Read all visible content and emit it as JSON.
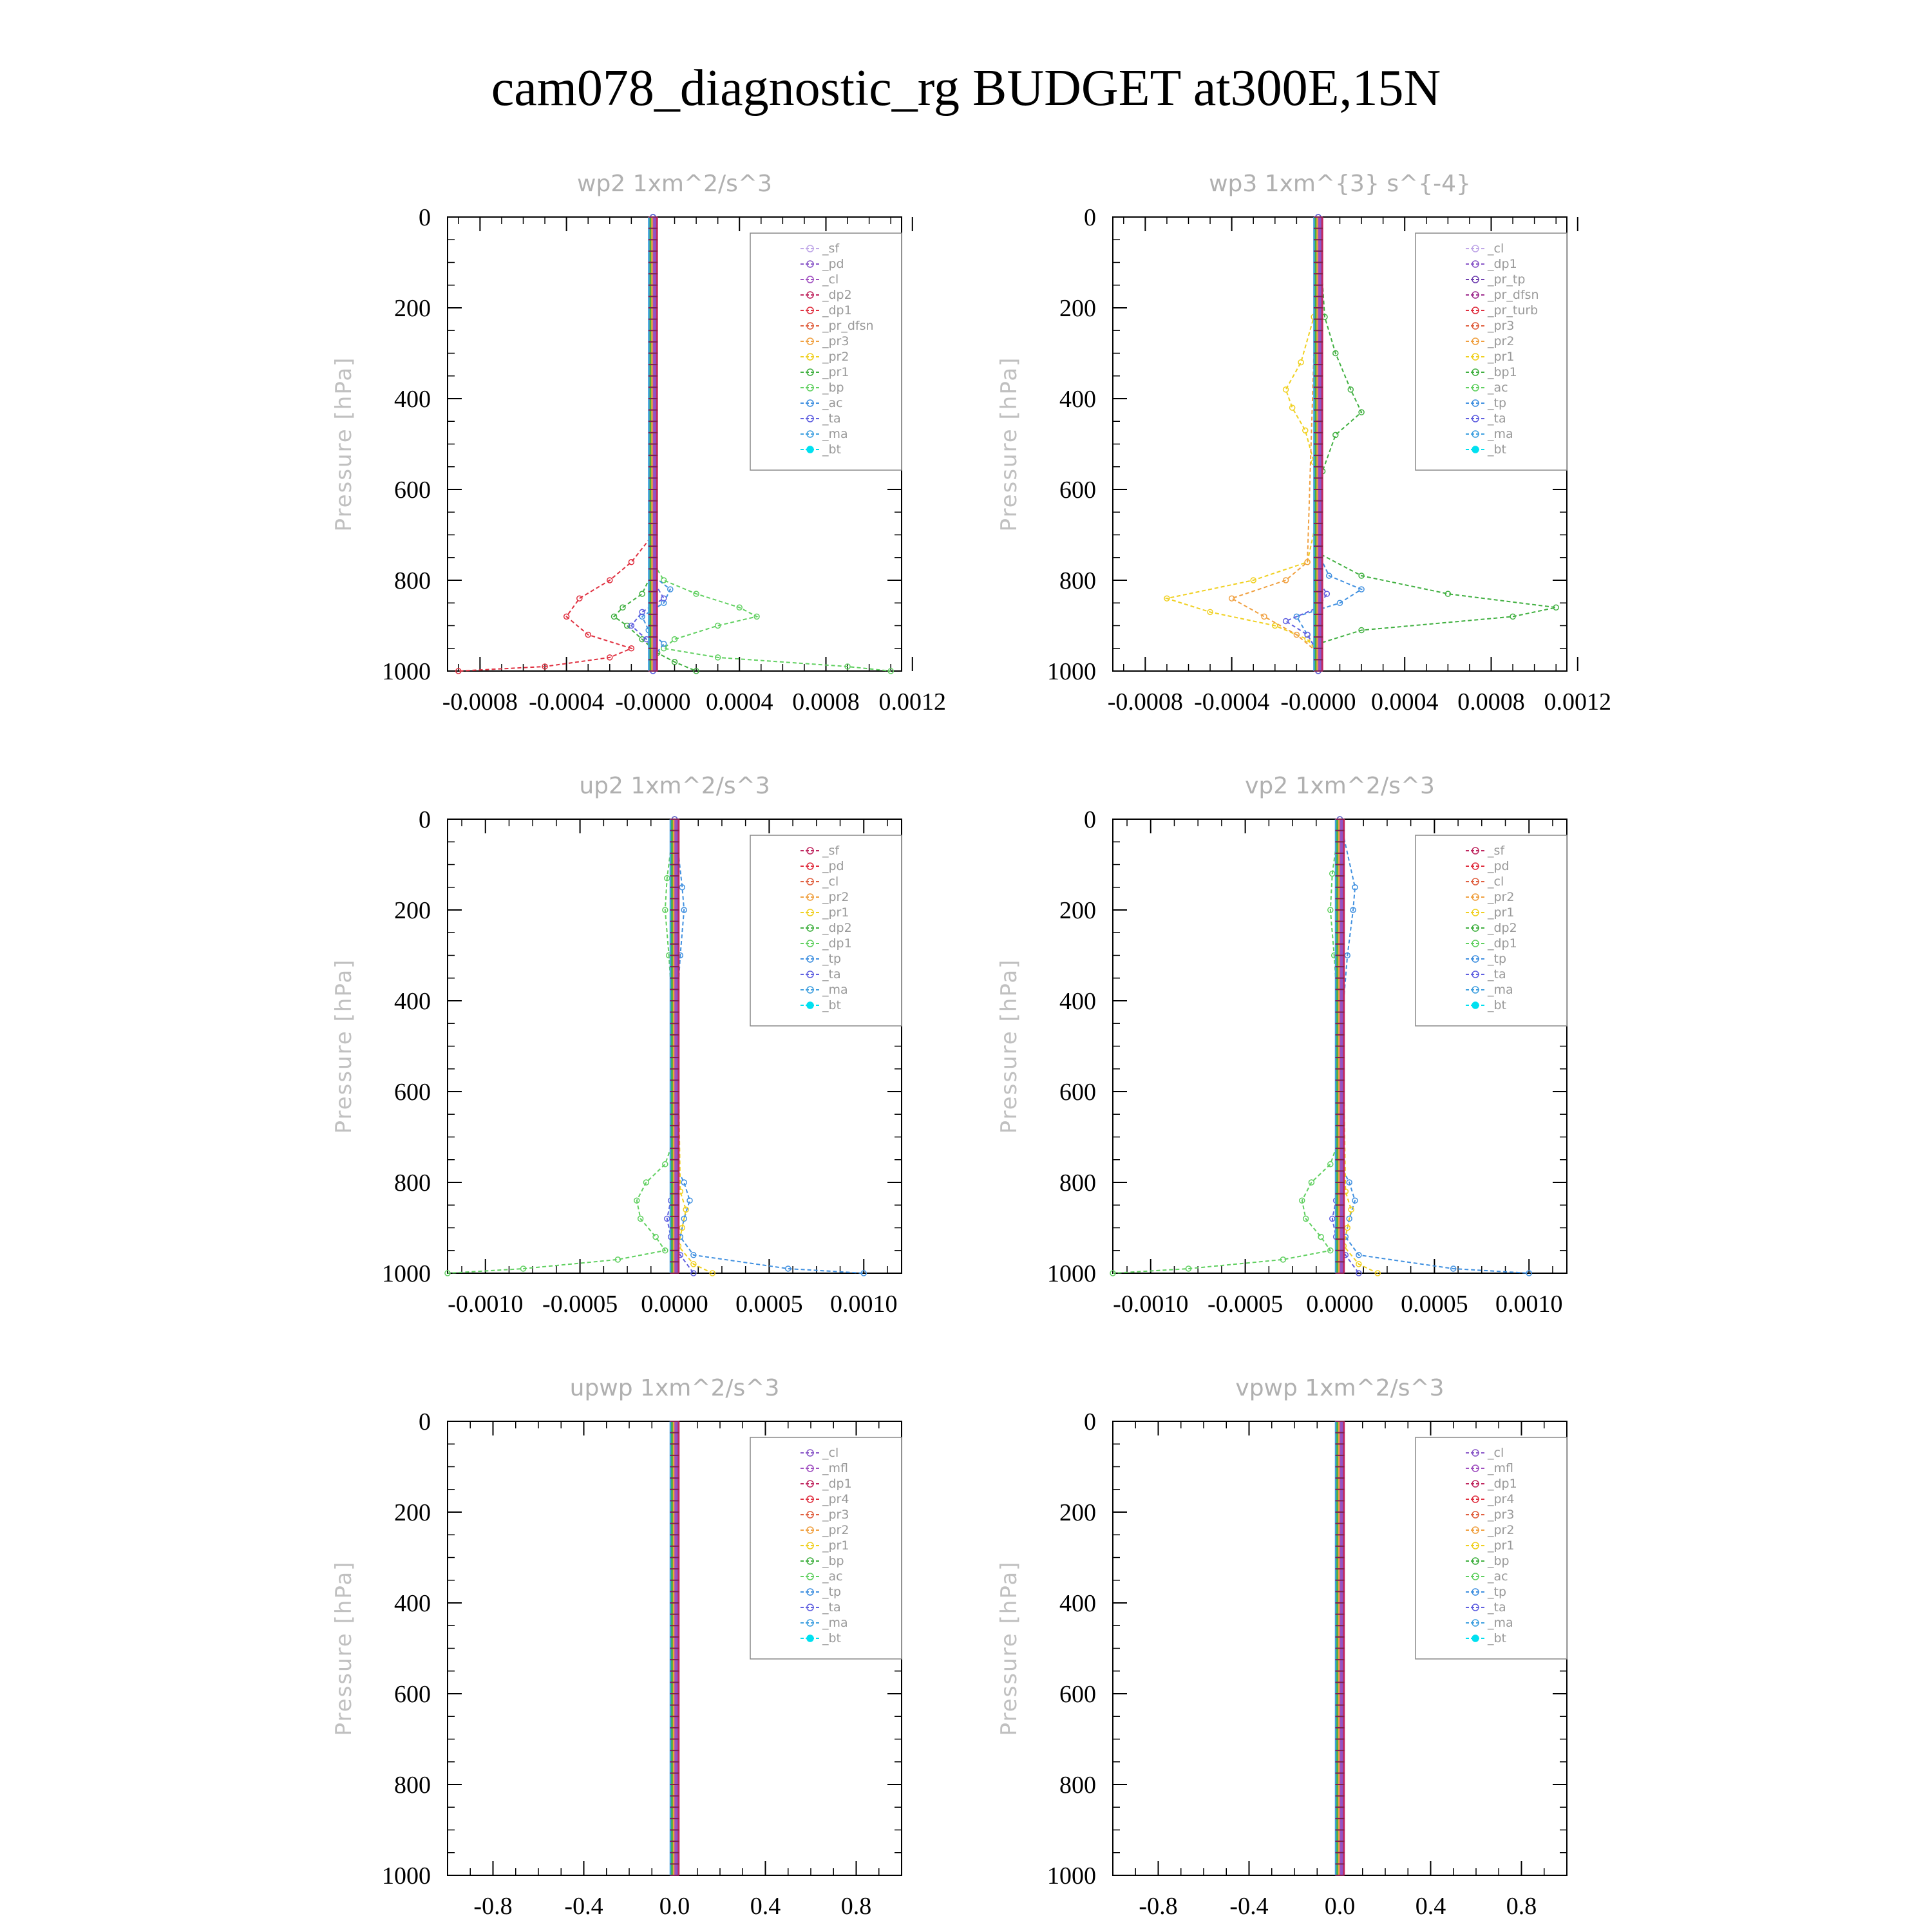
{
  "title": "cam078_diagnostic_rg  BUDGET at300E,15N",
  "chart_data": [
    {
      "type": "line",
      "title": "wp2   1xm^2/s^3",
      "ylabel": "Pressure [hPa]",
      "yticks": [
        0,
        200,
        400,
        600,
        800,
        1000
      ],
      "ylim": [
        0,
        1000
      ],
      "xlim": [
        -0.00095,
        0.00115
      ],
      "xticks": [
        -0.0008,
        -0.0004,
        0.0,
        0.0004,
        0.0008,
        0.0012
      ],
      "xtick_labels": [
        "-0.0008",
        "-0.0004",
        "-0.0000",
        "0.0004",
        "0.0008",
        "0.0012"
      ],
      "legend": [
        "_sf",
        "_pd",
        "_cl",
        "_dp2",
        "_dp1",
        "_pr_dfsn",
        "_pr3",
        "_pr2",
        "_pr1",
        "_bp",
        "_ac",
        "_ta",
        "_ma",
        "_bt"
      ],
      "legend_colors": [
        "#c0a8e8",
        "#8a58c8",
        "#a050c0",
        "#c02860",
        "#e03040",
        "#e06040",
        "#f0a040",
        "#f0d020",
        "#40b040",
        "#60d060",
        "#4090e0",
        "#6060e0",
        "#40a0e0",
        "#00e0f0"
      ],
      "legend_position": "top-right",
      "series": [
        {
          "name": "_dp1",
          "y": [
            0,
            700,
            760,
            800,
            840,
            880,
            920,
            950,
            970,
            990,
            1000
          ],
          "x": [
            0,
            0,
            -0.0001,
            -0.0002,
            -0.00034,
            -0.0004,
            -0.0003,
            -0.0001,
            -0.0002,
            -0.0005,
            -0.0009
          ]
        },
        {
          "name": "_pr1",
          "y": [
            0,
            780,
            830,
            860,
            880,
            900,
            930,
            960,
            980,
            1000
          ],
          "x": [
            0,
            0,
            -5e-05,
            -0.00014,
            -0.00018,
            -0.00012,
            -5e-05,
            2e-05,
            0.0001,
            0.0002
          ]
        },
        {
          "name": "_bp",
          "y": [
            0,
            760,
            800,
            830,
            860,
            880,
            900,
            930,
            950,
            970,
            990,
            1000
          ],
          "x": [
            0,
            0,
            5e-05,
            0.0002,
            0.0004,
            0.00048,
            0.0003,
            0.0001,
            5e-05,
            0.0003,
            0.0009,
            0.0011
          ]
        },
        {
          "name": "_ac",
          "y": [
            0,
            790,
            820,
            850,
            880,
            910,
            940,
            970,
            1000
          ],
          "x": [
            0,
            0,
            8e-05,
            5e-05,
            -5e-05,
            -2e-05,
            5e-05,
            0.0,
            0.0
          ]
        },
        {
          "name": "_ta",
          "y": [
            0,
            800,
            840,
            870,
            900,
            930,
            960,
            1000
          ],
          "x": [
            0,
            0,
            5e-05,
            -5e-05,
            -0.0001,
            -3e-05,
            0.0,
            0.0
          ]
        }
      ]
    },
    {
      "type": "line",
      "title": "wp3   1xm^{3} s^{-4}",
      "ylabel": "Pressure [hPa]",
      "yticks": [
        0,
        200,
        400,
        600,
        800,
        1000
      ],
      "ylim": [
        0,
        1000
      ],
      "xlim": [
        -0.00095,
        0.00115
      ],
      "xticks": [
        -0.0008,
        -0.0004,
        0.0,
        0.0004,
        0.0008,
        0.0012
      ],
      "xtick_labels": [
        "-0.0008",
        "-0.0004",
        "-0.0000",
        "0.0004",
        "0.0008",
        "0.0012"
      ],
      "legend": [
        "_cl",
        "_dp1",
        "_pr_tp",
        "_pr_dfsn",
        "_pr_turb",
        "_pr3",
        "_pr2",
        "_pr1",
        "_bp1",
        "_ac",
        "_tp",
        "_ta",
        "_ma",
        "_bt"
      ],
      "legend_colors": [
        "#c0a8e8",
        "#8a58c8",
        "#7040b0",
        "#a03090",
        "#e03040",
        "#e06040",
        "#f0a040",
        "#f0d020",
        "#40b040",
        "#60d060",
        "#4090e0",
        "#6060e0",
        "#40a0e0",
        "#00e0f0"
      ],
      "legend_position": "top-right",
      "series": [
        {
          "name": "_bp1",
          "y": [
            0,
            220,
            300,
            380,
            430,
            480,
            560,
            650,
            740,
            790,
            830,
            860,
            880,
            910,
            940,
            1000
          ],
          "x": [
            0,
            3e-05,
            8e-05,
            0.00015,
            0.0002,
            8e-05,
            2e-05,
            0.0,
            0.0,
            0.0002,
            0.0006,
            0.0011,
            0.0009,
            0.0002,
            0.0,
            0.0
          ]
        },
        {
          "name": "_pr1",
          "y": [
            0,
            220,
            320,
            380,
            420,
            470,
            540,
            650,
            760,
            800,
            840,
            870,
            900,
            930,
            960,
            1000
          ],
          "x": [
            0,
            -2e-05,
            -8e-05,
            -0.00015,
            -0.00012,
            -6e-05,
            -2e-05,
            0.0,
            -5e-05,
            -0.0003,
            -0.0007,
            -0.0005,
            -0.0002,
            -5e-05,
            0.0,
            0.0
          ]
        },
        {
          "name": "_pr2",
          "y": [
            0,
            760,
            800,
            840,
            880,
            920,
            960,
            1000
          ],
          "x": [
            0,
            -5e-05,
            -0.00015,
            -0.0004,
            -0.00025,
            -0.0001,
            0.0,
            0.0
          ]
        },
        {
          "name": "_tp",
          "y": [
            0,
            740,
            790,
            820,
            850,
            880,
            920,
            960,
            1000
          ],
          "x": [
            0,
            0.0,
            5e-05,
            0.0002,
            0.0001,
            -0.0001,
            -5e-05,
            0.0,
            0.0
          ]
        },
        {
          "name": "_ta",
          "y": [
            0,
            800,
            830,
            860,
            890,
            920,
            960,
            1000
          ],
          "x": [
            0,
            0.0,
            4e-05,
            0.0,
            -0.00015,
            -5e-05,
            0.0,
            0.0
          ]
        }
      ]
    },
    {
      "type": "line",
      "title": "up2   1xm^2/s^3",
      "ylabel": "Pressure [hPa]",
      "yticks": [
        0,
        200,
        400,
        600,
        800,
        1000
      ],
      "ylim": [
        0,
        1000
      ],
      "xlim": [
        -0.0012,
        0.0012
      ],
      "xticks": [
        -0.001,
        -0.0005,
        0.0,
        0.0005,
        0.001
      ],
      "xtick_labels": [
        "-0.0010",
        "-0.0005",
        "0.0000",
        "0.0005",
        "0.0010"
      ],
      "legend": [
        "_sf",
        "_pd",
        "_cl",
        "_pr2",
        "_pr1",
        "_dp2",
        "_dp1",
        "_tp",
        "_ta",
        "_ma",
        "_bt"
      ],
      "legend_colors": [
        "#c02860",
        "#e03040",
        "#e06040",
        "#f0a040",
        "#f0d020",
        "#40b040",
        "#60d060",
        "#4090e0",
        "#6060e0",
        "#40a0e0",
        "#00e0f0"
      ],
      "legend_position": "top-right",
      "series": [
        {
          "name": "_dp1",
          "y": [
            0,
            130,
            200,
            300,
            500,
            700,
            760,
            800,
            840,
            880,
            920,
            950,
            970,
            990,
            1000
          ],
          "x": [
            0,
            -4e-05,
            -5e-05,
            -3e-05,
            0.0,
            0.0,
            -5e-05,
            -0.00015,
            -0.0002,
            -0.00018,
            -0.0001,
            -5e-05,
            -0.0003,
            -0.0008,
            -0.0012
          ]
        },
        {
          "name": "_tp",
          "y": [
            0,
            150,
            200,
            300,
            500,
            760,
            800,
            840,
            880,
            920,
            960,
            990,
            1000
          ],
          "x": [
            0,
            4e-05,
            5e-05,
            3e-05,
            0.0,
            0.0,
            5e-05,
            8e-05,
            5e-05,
            3e-05,
            0.0001,
            0.0006,
            0.001
          ]
        },
        {
          "name": "_pr1",
          "y": [
            0,
            820,
            860,
            900,
            940,
            980,
            1000
          ],
          "x": [
            0,
            3e-05,
            6e-05,
            4e-05,
            2e-05,
            0.0001,
            0.0002
          ]
        },
        {
          "name": "_ta",
          "y": [
            0,
            800,
            840,
            880,
            920,
            960,
            1000
          ],
          "x": [
            0,
            0.0,
            -2e-05,
            -4e-05,
            -2e-05,
            3e-05,
            0.0001
          ]
        }
      ]
    },
    {
      "type": "line",
      "title": "vp2   1xm^2/s^3",
      "ylabel": "Pressure [hPa]",
      "yticks": [
        0,
        200,
        400,
        600,
        800,
        1000
      ],
      "ylim": [
        0,
        1000
      ],
      "xlim": [
        -0.0012,
        0.0012
      ],
      "xticks": [
        -0.001,
        -0.0005,
        0.0,
        0.0005,
        0.001
      ],
      "xtick_labels": [
        "-0.0010",
        "-0.0005",
        "0.0000",
        "0.0005",
        "0.0010"
      ],
      "legend": [
        "_sf",
        "_pd",
        "_cl",
        "_pr2",
        "_pr1",
        "_dp2",
        "_dp1",
        "_tp",
        "_ta",
        "_ma",
        "_bt"
      ],
      "legend_colors": [
        "#c02860",
        "#e03040",
        "#e06040",
        "#f0a040",
        "#f0d020",
        "#40b040",
        "#60d060",
        "#4090e0",
        "#6060e0",
        "#40a0e0",
        "#00e0f0"
      ],
      "legend_position": "top-right",
      "series": [
        {
          "name": "_dp1",
          "y": [
            0,
            120,
            200,
            300,
            500,
            700,
            760,
            800,
            840,
            880,
            920,
            950,
            970,
            990,
            1000
          ],
          "x": [
            0,
            -4e-05,
            -5e-05,
            -3e-05,
            0.0,
            0.0,
            -5e-05,
            -0.00015,
            -0.0002,
            -0.00018,
            -0.0001,
            -5e-05,
            -0.0003,
            -0.0008,
            -0.0012
          ]
        },
        {
          "name": "_tp",
          "y": [
            0,
            150,
            200,
            300,
            500,
            760,
            800,
            840,
            880,
            920,
            960,
            990,
            1000
          ],
          "x": [
            0,
            8e-05,
            7e-05,
            4e-05,
            0.0,
            0.0,
            5e-05,
            8e-05,
            5e-05,
            3e-05,
            0.0001,
            0.0006,
            0.001
          ]
        },
        {
          "name": "_pr1",
          "y": [
            0,
            820,
            860,
            900,
            940,
            980,
            1000
          ],
          "x": [
            0,
            3e-05,
            6e-05,
            4e-05,
            2e-05,
            0.0001,
            0.0002
          ]
        },
        {
          "name": "_ta",
          "y": [
            0,
            800,
            840,
            880,
            920,
            960,
            1000
          ],
          "x": [
            0,
            0.0,
            -2e-05,
            -4e-05,
            -2e-05,
            3e-05,
            0.0001
          ]
        }
      ]
    },
    {
      "type": "line",
      "title": "upwp   1xm^2/s^3",
      "ylabel": "Pressure [hPa]",
      "yticks": [
        0,
        200,
        400,
        600,
        800,
        1000
      ],
      "ylim": [
        0,
        1000
      ],
      "xlim": [
        -1.0,
        1.0
      ],
      "xticks": [
        -0.8,
        -0.4,
        0.0,
        0.4,
        0.8
      ],
      "xtick_labels": [
        "-0.8",
        "-0.4",
        "0.0",
        "0.4",
        "0.8"
      ],
      "legend": [
        "_cl",
        "_mfl",
        "_dp1",
        "_pr4",
        "_pr3",
        "_pr2",
        "_pr1",
        "_bp",
        "_ac",
        "_tp",
        "_ta",
        "_ma",
        "_bt"
      ],
      "legend_colors": [
        "#8a58c8",
        "#a050c0",
        "#c02860",
        "#e03040",
        "#e06040",
        "#f0a040",
        "#f0d020",
        "#40b040",
        "#60d060",
        "#4090e0",
        "#6060e0",
        "#40a0e0",
        "#00e0f0"
      ],
      "legend_position": "top-right",
      "series": []
    },
    {
      "type": "line",
      "title": "vpwp   1xm^2/s^3",
      "ylabel": "Pressure [hPa]",
      "yticks": [
        0,
        200,
        400,
        600,
        800,
        1000
      ],
      "ylim": [
        0,
        1000
      ],
      "xlim": [
        -1.0,
        1.0
      ],
      "xticks": [
        -0.8,
        -0.4,
        0.0,
        0.4,
        0.8
      ],
      "xtick_labels": [
        "-0.8",
        "-0.4",
        "0.0",
        "0.4",
        "0.8"
      ],
      "legend": [
        "_cl",
        "_mfl",
        "_dp1",
        "_pr4",
        "_pr3",
        "_pr2",
        "_pr1",
        "_bp",
        "_ac",
        "_tp",
        "_ta",
        "_ma",
        "_bt"
      ],
      "legend_colors": [
        "#8a58c8",
        "#a050c0",
        "#c02860",
        "#e03040",
        "#e06040",
        "#f0a040",
        "#f0d020",
        "#40b040",
        "#60d060",
        "#4090e0",
        "#6060e0",
        "#40a0e0",
        "#00e0f0"
      ],
      "legend_position": "top-right",
      "series": []
    }
  ]
}
